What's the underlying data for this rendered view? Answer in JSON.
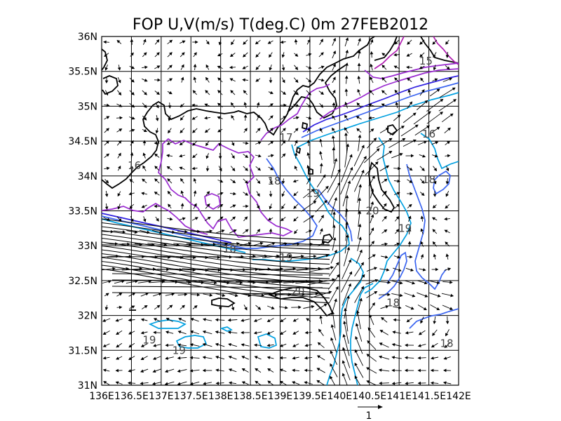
{
  "title": "FOP U,V(m/s) T(deg.C) 0m 27FEB2012",
  "map": {
    "lon_range": [
      136,
      142
    ],
    "lat_range": [
      31,
      36
    ],
    "lon_ticks": [
      "136E",
      "136.5E",
      "137E",
      "137.5E",
      "138E",
      "138.5E",
      "139E",
      "139.5E",
      "140E",
      "140.5E",
      "141E",
      "141.5E",
      "142E"
    ],
    "lat_ticks": [
      "31N",
      "31.5N",
      "32N",
      "32.5N",
      "33N",
      "33.5N",
      "34N",
      "34.5N",
      "35N",
      "35.5N",
      "36N"
    ],
    "grid": true,
    "contour_labels": [
      {
        "text": "15",
        "lon": 141.45,
        "lat": 35.65
      },
      {
        "text": "16",
        "lon": 136.55,
        "lat": 34.15
      },
      {
        "text": "16",
        "lon": 141.5,
        "lat": 34.6
      },
      {
        "text": "17",
        "lon": 139.1,
        "lat": 34.55
      },
      {
        "text": "18",
        "lon": 138.9,
        "lat": 33.93
      },
      {
        "text": "18",
        "lon": 141.5,
        "lat": 33.95
      },
      {
        "text": "18",
        "lon": 138.15,
        "lat": 32.95
      },
      {
        "text": "18",
        "lon": 140.9,
        "lat": 32.18
      },
      {
        "text": "18",
        "lon": 141.8,
        "lat": 31.6
      },
      {
        "text": "19",
        "lon": 139.55,
        "lat": 33.75
      },
      {
        "text": "19",
        "lon": 141.1,
        "lat": 33.25
      },
      {
        "text": "19",
        "lon": 139.1,
        "lat": 32.83
      },
      {
        "text": "19",
        "lon": 136.8,
        "lat": 31.65
      },
      {
        "text": "19",
        "lon": 137.3,
        "lat": 31.5
      },
      {
        "text": "20",
        "lon": 139.3,
        "lat": 32.35
      },
      {
        "text": "20",
        "lon": 140.55,
        "lat": 33.5
      }
    ],
    "colors": {
      "coast": "#000000",
      "t15": "#b01cb0",
      "t16": "#9a2ad0",
      "t17": "#3020e0",
      "t18": "#3a64f0",
      "t19": "#00a0e0",
      "vector": "#000000"
    }
  },
  "reference_vector": {
    "label": "1",
    "magnitude_ms": 1
  }
}
